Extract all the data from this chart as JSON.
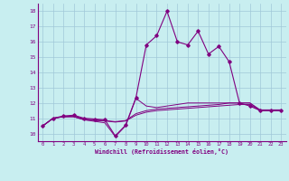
{
  "title": "",
  "xlabel": "Windchill (Refroidissement éolien,°C)",
  "ylabel": "",
  "bg_color": "#c8eef0",
  "line_color": "#800080",
  "grid_color": "#a0c8d8",
  "xlim": [
    -0.5,
    23.5
  ],
  "ylim": [
    9.5,
    18.5
  ],
  "xticks": [
    0,
    1,
    2,
    3,
    4,
    5,
    6,
    7,
    8,
    9,
    10,
    11,
    12,
    13,
    14,
    15,
    16,
    17,
    18,
    19,
    20,
    21,
    22,
    23
  ],
  "yticks": [
    10,
    11,
    12,
    13,
    14,
    15,
    16,
    17,
    18
  ],
  "series": [
    [
      10.5,
      11.0,
      11.1,
      11.1,
      10.9,
      10.8,
      10.7,
      9.8,
      10.5,
      12.3,
      11.8,
      11.7,
      11.8,
      11.9,
      12.0,
      12.0,
      12.0,
      12.0,
      12.0,
      12.0,
      12.0,
      11.5,
      11.5,
      11.5
    ],
    [
      10.5,
      11.0,
      11.1,
      11.1,
      10.9,
      10.85,
      10.82,
      10.75,
      10.82,
      11.2,
      11.4,
      11.5,
      11.55,
      11.6,
      11.65,
      11.7,
      11.75,
      11.8,
      11.85,
      11.9,
      11.9,
      11.5,
      11.5,
      11.5
    ],
    [
      10.5,
      11.0,
      11.1,
      11.15,
      10.95,
      10.9,
      10.85,
      10.78,
      10.85,
      11.3,
      11.5,
      11.6,
      11.65,
      11.7,
      11.75,
      11.8,
      11.85,
      11.9,
      12.0,
      12.0,
      12.0,
      11.55,
      11.55,
      11.55
    ],
    [
      10.5,
      11.0,
      11.15,
      11.2,
      11.0,
      10.95,
      10.9,
      9.85,
      10.55,
      12.35,
      15.8,
      16.4,
      18.0,
      16.0,
      15.8,
      16.7,
      15.2,
      15.7,
      14.7,
      12.0,
      11.8,
      11.5,
      11.5,
      11.5
    ]
  ]
}
